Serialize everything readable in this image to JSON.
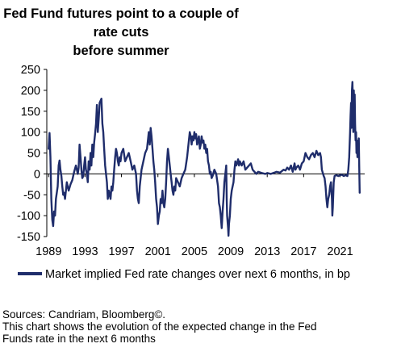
{
  "chart_data": {
    "type": "line",
    "title_lines": [
      "Fed Fund futures point to a couple of rate cuts",
      "before summer"
    ],
    "xlabel": "",
    "ylabel": "",
    "ylim": [
      -150,
      250
    ],
    "xlim": [
      1988.8,
      2023.7
    ],
    "yticks": [
      -150,
      -100,
      -50,
      0,
      50,
      100,
      150,
      200,
      250
    ],
    "xticks": [
      1989,
      1993,
      1997,
      2001,
      2005,
      2009,
      2013,
      2017,
      2021
    ],
    "grid": false,
    "legend_position": "bottom",
    "series": [
      {
        "name": "Market implied Fed rate changes over next 6 months, in bp",
        "color": "#1f2d6b",
        "points": [
          [
            1989.0,
            60
          ],
          [
            1989.1,
            98
          ],
          [
            1989.2,
            40
          ],
          [
            1989.3,
            -60
          ],
          [
            1989.4,
            -110
          ],
          [
            1989.5,
            -125
          ],
          [
            1989.6,
            -90
          ],
          [
            1989.7,
            -100
          ],
          [
            1989.8,
            -60
          ],
          [
            1989.9,
            -45
          ],
          [
            1990.0,
            -30
          ],
          [
            1990.1,
            20
          ],
          [
            1990.2,
            32
          ],
          [
            1990.3,
            10
          ],
          [
            1990.4,
            -5
          ],
          [
            1990.5,
            -30
          ],
          [
            1990.6,
            -50
          ],
          [
            1990.7,
            -45
          ],
          [
            1990.8,
            -60
          ],
          [
            1990.9,
            -40
          ],
          [
            1991.0,
            -20
          ],
          [
            1991.2,
            -40
          ],
          [
            1991.4,
            -25
          ],
          [
            1991.6,
            -15
          ],
          [
            1991.8,
            5
          ],
          [
            1992.0,
            20
          ],
          [
            1992.2,
            0
          ],
          [
            1992.3,
            15
          ],
          [
            1992.4,
            70
          ],
          [
            1992.5,
            40
          ],
          [
            1992.6,
            10
          ],
          [
            1992.7,
            -10
          ],
          [
            1992.8,
            -5
          ],
          [
            1992.9,
            20
          ],
          [
            1993.0,
            40
          ],
          [
            1993.1,
            10
          ],
          [
            1993.2,
            0
          ],
          [
            1993.3,
            -20
          ],
          [
            1993.4,
            30
          ],
          [
            1993.5,
            10
          ],
          [
            1993.6,
            50
          ],
          [
            1993.7,
            20
          ],
          [
            1993.8,
            70
          ],
          [
            1993.9,
            40
          ],
          [
            1994.0,
            75
          ],
          [
            1994.1,
            95
          ],
          [
            1994.2,
            120
          ],
          [
            1994.3,
            165
          ],
          [
            1994.4,
            100
          ],
          [
            1994.5,
            130
          ],
          [
            1994.6,
            170
          ],
          [
            1994.7,
            175
          ],
          [
            1994.8,
            180
          ],
          [
            1994.9,
            120
          ],
          [
            1995.0,
            100
          ],
          [
            1995.1,
            60
          ],
          [
            1995.2,
            20
          ],
          [
            1995.3,
            0
          ],
          [
            1995.4,
            -20
          ],
          [
            1995.5,
            -60
          ],
          [
            1995.6,
            -40
          ],
          [
            1995.7,
            -50
          ],
          [
            1995.8,
            -60
          ],
          [
            1995.9,
            -30
          ],
          [
            1996.0,
            -40
          ],
          [
            1996.1,
            -20
          ],
          [
            1996.2,
            10
          ],
          [
            1996.3,
            40
          ],
          [
            1996.4,
            60
          ],
          [
            1996.5,
            50
          ],
          [
            1996.6,
            30
          ],
          [
            1996.7,
            20
          ],
          [
            1996.8,
            40
          ],
          [
            1996.9,
            30
          ],
          [
            1997.0,
            50
          ],
          [
            1997.2,
            60
          ],
          [
            1997.4,
            30
          ],
          [
            1997.6,
            40
          ],
          [
            1997.8,
            50
          ],
          [
            1998.0,
            30
          ],
          [
            1998.2,
            10
          ],
          [
            1998.4,
            20
          ],
          [
            1998.6,
            0
          ],
          [
            1998.7,
            -40
          ],
          [
            1998.8,
            -60
          ],
          [
            1998.9,
            -70
          ],
          [
            1999.0,
            -30
          ],
          [
            1999.2,
            10
          ],
          [
            1999.4,
            30
          ],
          [
            1999.6,
            50
          ],
          [
            1999.8,
            60
          ],
          [
            2000.0,
            100
          ],
          [
            2000.1,
            70
          ],
          [
            2000.2,
            110
          ],
          [
            2000.3,
            90
          ],
          [
            2000.4,
            60
          ],
          [
            2000.5,
            30
          ],
          [
            2000.6,
            10
          ],
          [
            2000.7,
            -20
          ],
          [
            2000.8,
            -60
          ],
          [
            2000.9,
            -80
          ],
          [
            2001.0,
            -120
          ],
          [
            2001.1,
            -100
          ],
          [
            2001.2,
            -90
          ],
          [
            2001.3,
            -60
          ],
          [
            2001.4,
            -70
          ],
          [
            2001.5,
            -40
          ],
          [
            2001.6,
            -70
          ],
          [
            2001.7,
            -80
          ],
          [
            2001.8,
            -60
          ],
          [
            2001.9,
            -20
          ],
          [
            2002.0,
            30
          ],
          [
            2002.1,
            60
          ],
          [
            2002.2,
            40
          ],
          [
            2002.3,
            20
          ],
          [
            2002.4,
            0
          ],
          [
            2002.5,
            -20
          ],
          [
            2002.6,
            -40
          ],
          [
            2002.7,
            -50
          ],
          [
            2002.8,
            -30
          ],
          [
            2002.9,
            -40
          ],
          [
            2003.0,
            -10
          ],
          [
            2003.2,
            -20
          ],
          [
            2003.4,
            -30
          ],
          [
            2003.6,
            -10
          ],
          [
            2003.8,
            0
          ],
          [
            2004.0,
            10
          ],
          [
            2004.2,
            40
          ],
          [
            2004.4,
            80
          ],
          [
            2004.5,
            100
          ],
          [
            2004.6,
            90
          ],
          [
            2004.7,
            70
          ],
          [
            2004.8,
            90
          ],
          [
            2004.9,
            80
          ],
          [
            2005.0,
            100
          ],
          [
            2005.1,
            85
          ],
          [
            2005.2,
            95
          ],
          [
            2005.3,
            70
          ],
          [
            2005.4,
            80
          ],
          [
            2005.5,
            90
          ],
          [
            2005.6,
            60
          ],
          [
            2005.7,
            70
          ],
          [
            2005.8,
            90
          ],
          [
            2005.9,
            75
          ],
          [
            2006.0,
            80
          ],
          [
            2006.1,
            60
          ],
          [
            2006.2,
            70
          ],
          [
            2006.3,
            50
          ],
          [
            2006.4,
            60
          ],
          [
            2006.5,
            30
          ],
          [
            2006.6,
            20
          ],
          [
            2006.7,
            0
          ],
          [
            2006.8,
            5
          ],
          [
            2006.9,
            -10
          ],
          [
            2007.0,
            -5
          ],
          [
            2007.2,
            10
          ],
          [
            2007.4,
            0
          ],
          [
            2007.6,
            -30
          ],
          [
            2007.7,
            -70
          ],
          [
            2007.8,
            -80
          ],
          [
            2007.9,
            -100
          ],
          [
            2008.0,
            -130
          ],
          [
            2008.1,
            -90
          ],
          [
            2008.2,
            -60
          ],
          [
            2008.3,
            -20
          ],
          [
            2008.4,
            0
          ],
          [
            2008.5,
            20
          ],
          [
            2008.55,
            -60
          ],
          [
            2008.6,
            -100
          ],
          [
            2008.7,
            -130
          ],
          [
            2008.75,
            -148
          ],
          [
            2008.8,
            -120
          ],
          [
            2008.9,
            -100
          ],
          [
            2009.0,
            -60
          ],
          [
            2009.1,
            -40
          ],
          [
            2009.2,
            -30
          ],
          [
            2009.3,
            -20
          ],
          [
            2009.4,
            10
          ],
          [
            2009.5,
            30
          ],
          [
            2009.6,
            20
          ],
          [
            2009.7,
            25
          ],
          [
            2009.8,
            35
          ],
          [
            2009.9,
            20
          ],
          [
            2010.0,
            30
          ],
          [
            2010.2,
            20
          ],
          [
            2010.4,
            30
          ],
          [
            2010.6,
            10
          ],
          [
            2010.8,
            15
          ],
          [
            2011.0,
            20
          ],
          [
            2011.2,
            25
          ],
          [
            2011.4,
            10
          ],
          [
            2011.6,
            5
          ],
          [
            2011.8,
            0
          ],
          [
            2012.0,
            5
          ],
          [
            2012.4,
            2
          ],
          [
            2012.8,
            0
          ],
          [
            2013.0,
            2
          ],
          [
            2013.4,
            0
          ],
          [
            2013.8,
            3
          ],
          [
            2014.0,
            5
          ],
          [
            2014.4,
            3
          ],
          [
            2014.8,
            10
          ],
          [
            2015.0,
            8
          ],
          [
            2015.2,
            15
          ],
          [
            2015.4,
            10
          ],
          [
            2015.6,
            20
          ],
          [
            2015.8,
            5
          ],
          [
            2016.0,
            25
          ],
          [
            2016.1,
            10
          ],
          [
            2016.2,
            15
          ],
          [
            2016.4,
            20
          ],
          [
            2016.6,
            10
          ],
          [
            2016.8,
            25
          ],
          [
            2017.0,
            30
          ],
          [
            2017.2,
            50
          ],
          [
            2017.4,
            40
          ],
          [
            2017.6,
            35
          ],
          [
            2017.8,
            45
          ],
          [
            2018.0,
            50
          ],
          [
            2018.2,
            40
          ],
          [
            2018.4,
            55
          ],
          [
            2018.6,
            45
          ],
          [
            2018.8,
            50
          ],
          [
            2018.9,
            40
          ],
          [
            2019.0,
            10
          ],
          [
            2019.2,
            -5
          ],
          [
            2019.3,
            -10
          ],
          [
            2019.4,
            -30
          ],
          [
            2019.5,
            -60
          ],
          [
            2019.6,
            -80
          ],
          [
            2019.7,
            -60
          ],
          [
            2019.8,
            -50
          ],
          [
            2019.9,
            -30
          ],
          [
            2020.0,
            -20
          ],
          [
            2020.1,
            -60
          ],
          [
            2020.15,
            -100
          ],
          [
            2020.2,
            -80
          ],
          [
            2020.3,
            -20
          ],
          [
            2020.4,
            -5
          ],
          [
            2020.6,
            -3
          ],
          [
            2020.8,
            -5
          ],
          [
            2021.0,
            -3
          ],
          [
            2021.2,
            -2
          ],
          [
            2021.4,
            -5
          ],
          [
            2021.6,
            -3
          ],
          [
            2021.8,
            -5
          ],
          [
            2021.9,
            10
          ],
          [
            2022.0,
            40
          ],
          [
            2022.1,
            100
          ],
          [
            2022.15,
            140
          ],
          [
            2022.2,
            170
          ],
          [
            2022.25,
            110
          ],
          [
            2022.3,
            200
          ],
          [
            2022.35,
            220
          ],
          [
            2022.4,
            180
          ],
          [
            2022.45,
            100
          ],
          [
            2022.5,
            200
          ],
          [
            2022.55,
            150
          ],
          [
            2022.6,
            190
          ],
          [
            2022.65,
            120
          ],
          [
            2022.7,
            80
          ],
          [
            2022.75,
            100
          ],
          [
            2022.8,
            50
          ],
          [
            2022.85,
            80
          ],
          [
            2022.9,
            40
          ],
          [
            2022.95,
            60
          ],
          [
            2023.0,
            50
          ],
          [
            2023.05,
            85
          ],
          [
            2023.1,
            20
          ],
          [
            2023.15,
            -45
          ]
        ]
      }
    ],
    "notes": [
      "Sources: Candriam, Bloomberg©.",
      "This chart shows the evolution of the expected change in the Fed",
      "Funds rate in the next 6 months"
    ]
  }
}
